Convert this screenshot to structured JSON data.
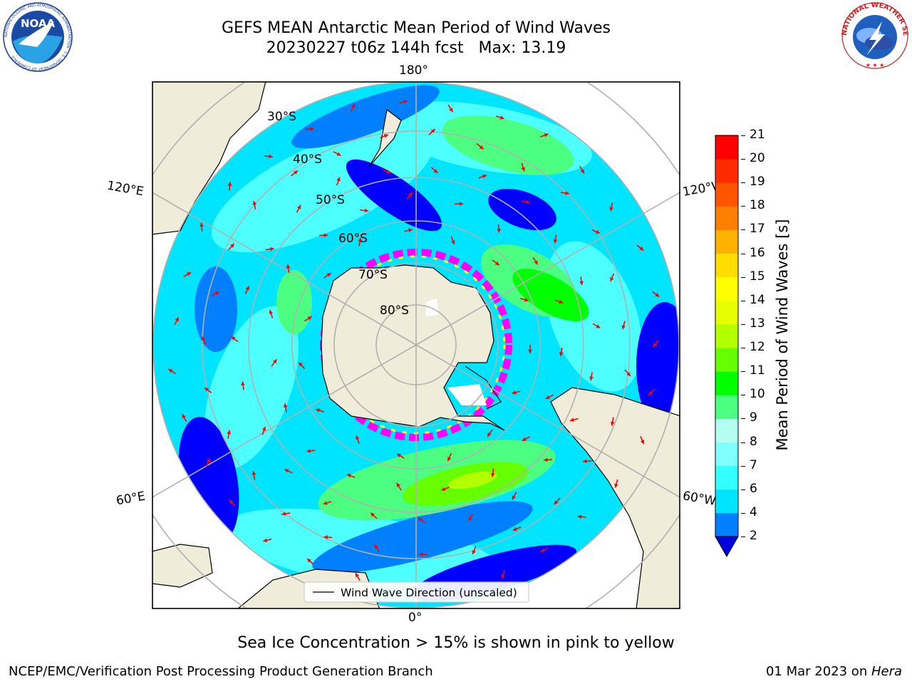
{
  "header": {
    "title_line1": "GEFS MEAN Antarctic Mean Period of Wind Waves",
    "title_line2": "20230227 t06z 144h fcst   Max: 13.19"
  },
  "logos": {
    "noaa_text": "NOAA",
    "noaa_ring": "NATIONAL OCEANIC AND ATMOSPHERIC ADMINISTRATION · U.S. DEPARTMENT OF COMMERCE",
    "nws_ring": "NATIONAL WEATHER SERVICE"
  },
  "map": {
    "longitude_labels": {
      "top": "180°",
      "bottom": "0°",
      "upper_left": "120°E",
      "upper_right": "120°W",
      "lower_left": "60°E",
      "lower_right": "60°W"
    },
    "latitude_labels": [
      "30°S",
      "40°S",
      "50°S",
      "60°S",
      "70°S",
      "80°S"
    ],
    "legend_label": "Wind Wave Direction (unscaled)",
    "colors": {
      "land": "#efedda",
      "frame": "#000000",
      "gridline": "#b0b0b0",
      "arrow": "#ff0000",
      "ice_low": "#ff00ff",
      "ice_high": "#ffff00"
    }
  },
  "colorbar": {
    "label": "Mean Period of Wind Waves [s]",
    "ticks": [
      "2",
      "4",
      "6",
      "7",
      "8",
      "9",
      "10",
      "11",
      "12",
      "13",
      "14",
      "15",
      "16",
      "17",
      "18",
      "19",
      "20",
      "21"
    ],
    "colors": [
      "#0000ff",
      "#0080ff",
      "#00e5ff",
      "#33ffff",
      "#80ffff",
      "#b3fff0",
      "#4dff80",
      "#00ff00",
      "#66ff00",
      "#b3ff00",
      "#e6ff00",
      "#ffff00",
      "#ffdd00",
      "#ffb300",
      "#ff8000",
      "#ff5500",
      "#ff2a00",
      "#ff0000"
    ],
    "extend_color": "#0000dd"
  },
  "caption": "Sea Ice Concentration > 15% is shown in pink to yellow",
  "footer": {
    "left": "NCEP/EMC/Verification Post Processing Product Generation Branch",
    "right_prefix": "01 Mar 2023 on ",
    "right_host": "Hera"
  }
}
